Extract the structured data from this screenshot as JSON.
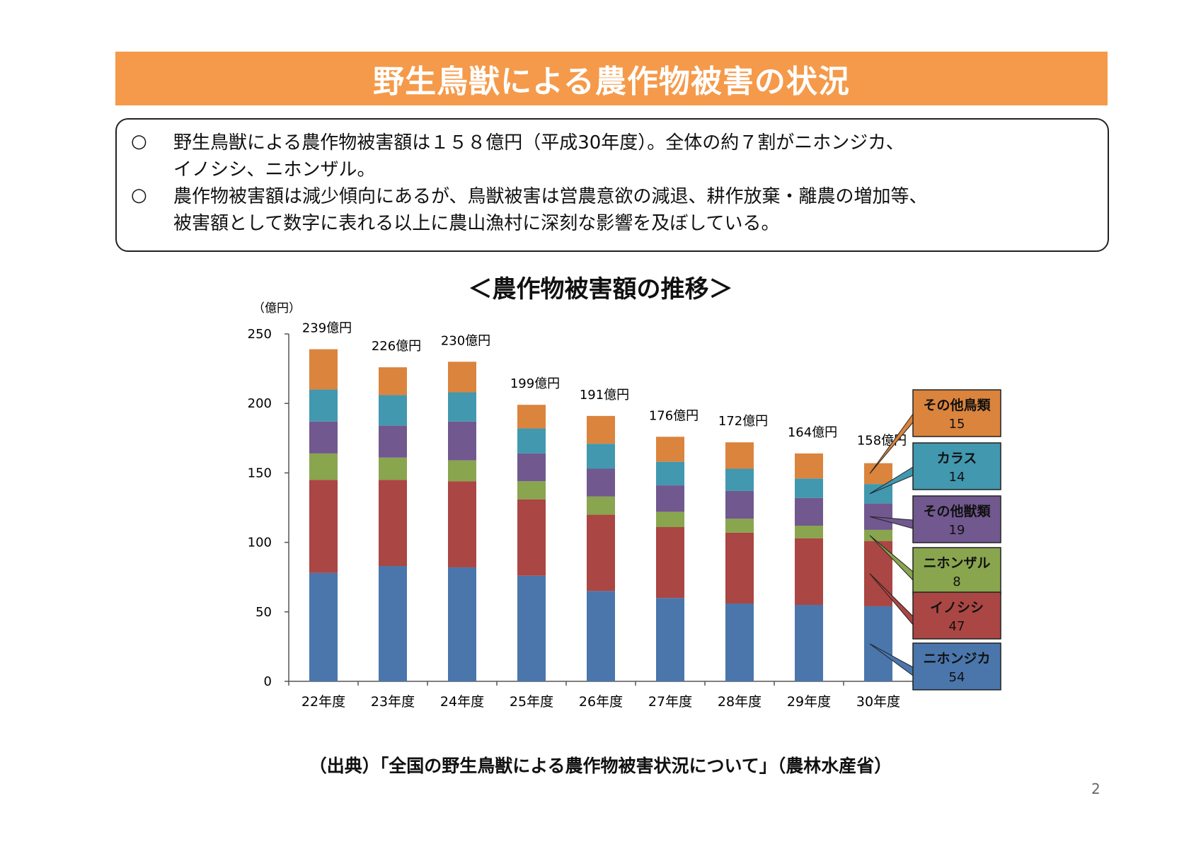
{
  "title": "野生鳥獣による農作物被害の状況",
  "summary": [
    {
      "mark": "○",
      "lines": [
        "野生鳥獣による農作物被害額は１５８億円（平成30年度）。全体の約７割がニホンジカ、",
        "イノシシ、ニホンザル。"
      ]
    },
    {
      "mark": "○",
      "lines": [
        "農作物被害額は減少傾向にあるが、鳥獣被害は営農意欲の減退、耕作放棄・離農の増加等、",
        "被害額として数字に表れる以上に農山漁村に深刻な影響を及ぼしている。"
      ]
    }
  ],
  "chart_title": "＜農作物被害額の推移＞",
  "source": "（出典）「全国の野生鳥獣による農作物被害状況について」（農林水産省）",
  "page_number": "2",
  "chart_data": {
    "type": "bar",
    "stacked": true,
    "yunit": "（億円）",
    "ylim": [
      0,
      250
    ],
    "yticks": [
      "0",
      "50",
      "100",
      "150",
      "200",
      "250"
    ],
    "categories": [
      "22年度",
      "23年度",
      "24年度",
      "25年度",
      "26年度",
      "27年度",
      "28年度",
      "29年度",
      "30年度"
    ],
    "totals_label": [
      "239億円",
      "226億円",
      "230億円",
      "199億円",
      "191億円",
      "176億円",
      "172億円",
      "164億円",
      "158億円"
    ],
    "totals": [
      239,
      226,
      230,
      199,
      191,
      176,
      172,
      164,
      158
    ],
    "series": [
      {
        "name": "ニホンジカ",
        "color": "#4a76ac",
        "values": [
          78,
          83,
          82,
          76,
          65,
          60,
          56,
          55,
          54
        ],
        "legend_value": "54"
      },
      {
        "name": "イノシシ",
        "color": "#aa4643",
        "values": [
          67,
          62,
          62,
          55,
          55,
          51,
          51,
          48,
          47
        ],
        "legend_value": "47"
      },
      {
        "name": "ニホンザル",
        "color": "#89a54e",
        "values": [
          19,
          16,
          15,
          13,
          13,
          11,
          10,
          9,
          8
        ],
        "legend_value": "8"
      },
      {
        "name": "その他獣類",
        "color": "#71588f",
        "values": [
          23,
          23,
          28,
          20,
          20,
          19,
          20,
          20,
          19
        ],
        "legend_value": "19"
      },
      {
        "name": "カラス",
        "color": "#4198af",
        "values": [
          23,
          22,
          21,
          18,
          18,
          17,
          16,
          14,
          14
        ],
        "legend_value": "14"
      },
      {
        "name": "その他鳥類",
        "color": "#db843d",
        "values": [
          29,
          20,
          22,
          17,
          20,
          18,
          19,
          18,
          15
        ],
        "legend_value": "15"
      }
    ]
  }
}
